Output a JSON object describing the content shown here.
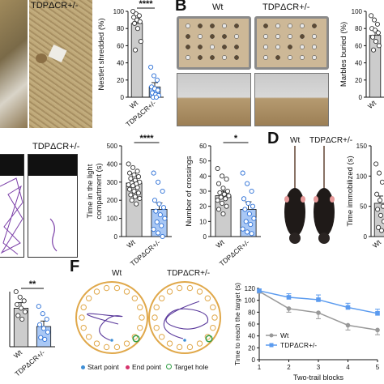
{
  "panels": {
    "a": {
      "photo_labels": [
        "TDPΔCR+/-"
      ],
      "chart_data": {
        "type": "bar",
        "ylabel": "Nestlet shredded (%)",
        "categories": [
          "Wt",
          "TDPΔCR+/-"
        ],
        "values": [
          86,
          12
        ],
        "errors": [
          6,
          5
        ],
        "ylim": [
          0,
          100
        ],
        "yticks": [
          0,
          20,
          40,
          60,
          80,
          100
        ],
        "significance": "****",
        "points": [
          [
            100,
            97,
            95,
            93,
            90,
            88,
            86,
            80,
            65,
            55
          ],
          [
            35,
            25,
            20,
            12,
            10,
            8,
            5,
            3,
            2,
            0,
            0
          ]
        ]
      }
    },
    "b": {
      "letter": "B",
      "photo_labels": [
        "Wt",
        "TDPΔCR+/-"
      ],
      "chart_data": {
        "type": "bar",
        "ylabel": "Marbles buried (%)",
        "categories": [
          "Wt"
        ],
        "values": [
          72
        ],
        "errors": [
          6
        ],
        "ylim": [
          0,
          100
        ],
        "yticks": [
          0,
          20,
          40,
          60,
          80,
          100
        ],
        "points": [
          [
            95,
            90,
            85,
            80,
            78,
            75,
            70,
            65,
            60,
            55
          ]
        ]
      }
    },
    "c": {
      "photo_labels": [
        "TDPΔCR+/-"
      ],
      "charts": [
        {
          "type": "bar",
          "ylabel": "Time in the light compartment (s)",
          "ylabel_lines": [
            "Time in the light",
            "compartment (s)"
          ],
          "categories": [
            "Wt",
            "TDPΔCR+/-"
          ],
          "values": [
            295,
            150
          ],
          "errors": [
            20,
            35
          ],
          "ylim": [
            0,
            500
          ],
          "yticks": [
            0,
            100,
            200,
            300,
            400,
            500
          ],
          "significance": "****",
          "points": [
            [
              400,
              380,
              360,
              350,
              340,
              330,
              320,
              310,
              300,
              295,
              290,
              285,
              280,
              270,
              260,
              250,
              240,
              230,
              220,
              210,
              200,
              180
            ],
            [
              350,
              300,
              250,
              200,
              180,
              160,
              140,
              120,
              100,
              80,
              60,
              40,
              20,
              0
            ]
          ]
        },
        {
          "type": "bar",
          "ylabel": "Number of crossings",
          "categories": [
            "Wt",
            "TDPΔCR+/-"
          ],
          "values": [
            27,
            18
          ],
          "errors": [
            3,
            5
          ],
          "ylim": [
            0,
            60
          ],
          "yticks": [
            0,
            10,
            20,
            30,
            40,
            50,
            60
          ],
          "significance": "*",
          "points": [
            [
              45,
              40,
              38,
              35,
              32,
              30,
              29,
              28,
              27,
              26,
              25,
              24,
              22,
              20,
              18,
              15
            ],
            [
              42,
              35,
              30,
              25,
              22,
              20,
              18,
              15,
              12,
              10,
              8,
              5,
              3,
              2
            ]
          ]
        }
      ]
    },
    "d": {
      "letter": "D",
      "photo_labels": [
        "Wt",
        "TDPΔCR+/-"
      ],
      "chart_data": {
        "type": "bar",
        "ylabel": "Time immobilized (s)",
        "categories": [
          "Wt"
        ],
        "values": [
          55
        ],
        "errors": [
          12
        ],
        "ylim": [
          0,
          150
        ],
        "yticks": [
          0,
          50,
          100,
          150
        ],
        "points": [
          [
            120,
            105,
            90,
            70,
            60,
            50,
            45,
            35,
            25,
            15,
            10
          ]
        ]
      }
    },
    "e": {
      "chart_data": {
        "type": "bar",
        "categories": [
          "Wt",
          "TDPΔCR+/-"
        ],
        "values": [
          61,
          51
        ],
        "errors": [
          3,
          3
        ],
        "ylim": [
          40,
          70
        ],
        "significance": "**",
        "points": [
          [
            70,
            67,
            65,
            63,
            61,
            59,
            57,
            55
          ],
          [
            62,
            58,
            55,
            52,
            50,
            48,
            45,
            44
          ]
        ]
      }
    },
    "f": {
      "letter": "F",
      "photo_labels": [
        "Wt",
        "TDPΔCR+/-"
      ],
      "legend": {
        "start": "Start point",
        "end": "End point",
        "target": "Target hole",
        "start_color": "#3f8fd6",
        "end_color": "#d6336c",
        "target_color": "#2f9e44"
      },
      "chart_data": {
        "type": "line",
        "xlabel": "Two-trail blocks",
        "ylabel": "Time to reach the target (s)",
        "x": [
          1,
          2,
          3,
          4,
          5
        ],
        "xticks": [
          1,
          2,
          3,
          4,
          5
        ],
        "ylim": [
          0,
          120
        ],
        "yticks": [
          0,
          20,
          40,
          60,
          80,
          100,
          120
        ],
        "series": [
          {
            "name": "Wt",
            "values": [
              115,
              86,
              79,
              58,
              50
            ],
            "errors": [
              3,
              6,
              10,
              8,
              8
            ],
            "color": "#999999"
          },
          {
            "name": "TDPΔCR+/-",
            "values": [
              116,
              105,
              101,
              88,
              78
            ],
            "errors": [
              3,
              6,
              8,
              7,
              7
            ],
            "color": "#5b9bef"
          }
        ]
      }
    }
  }
}
